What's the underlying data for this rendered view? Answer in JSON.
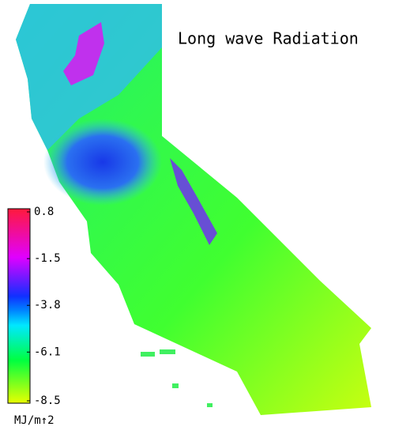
{
  "title": "Long wave Radiation",
  "colorbar": {
    "lim": [
      -8.5,
      0.8
    ],
    "ticks": [
      0.8,
      -1.5,
      -3.8,
      -6.1,
      -8.5
    ],
    "unit": "MJ/m↑2"
  }
}
